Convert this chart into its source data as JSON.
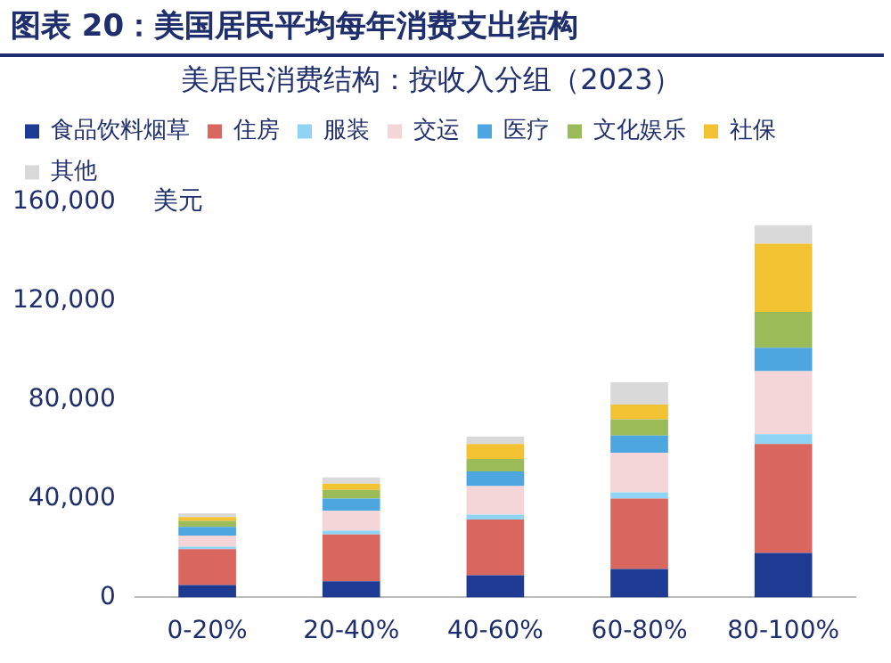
{
  "chart_data": {
    "type": "bar",
    "title": "图表 20：美国居民平均每年消费支出结构",
    "subtitle": "美居民消费结构：按收入分组（2023）",
    "ylabel": "美元",
    "categories": [
      "0-20%",
      "20-40%",
      "40-60%",
      "60-80%",
      "80-100%"
    ],
    "stacked": true,
    "grid": false,
    "legend": "top",
    "ylim": [
      0,
      160000
    ],
    "yticks": [
      {
        "value": 0,
        "label": "0"
      },
      {
        "value": 40000,
        "label": "40,000"
      },
      {
        "value": 80000,
        "label": "80,000"
      },
      {
        "value": 120000,
        "label": "120,000"
      },
      {
        "value": 160000,
        "label": "160,000"
      }
    ],
    "series": [
      {
        "name": "食品饮料烟草",
        "color": "#1f3a93",
        "values": [
          5000,
          6500,
          9000,
          11500,
          18000
        ]
      },
      {
        "name": "住房",
        "color": "#d9675f",
        "values": [
          14500,
          19000,
          22500,
          28500,
          44000
        ]
      },
      {
        "name": "服装",
        "color": "#8fd3f5",
        "values": [
          1000,
          1500,
          2000,
          2500,
          4000
        ]
      },
      {
        "name": "交运",
        "color": "#f4d6d8",
        "values": [
          4500,
          8000,
          11500,
          16000,
          25500
        ]
      },
      {
        "name": "医疗",
        "color": "#4ea6e0",
        "values": [
          3500,
          5000,
          6000,
          7000,
          9500
        ]
      },
      {
        "name": "文化娱乐",
        "color": "#9bbb59",
        "values": [
          2500,
          3500,
          5000,
          6500,
          14500
        ]
      },
      {
        "name": "社保",
        "color": "#f2c233",
        "values": [
          1500,
          2500,
          6000,
          6000,
          27500
        ]
      },
      {
        "name": "其他",
        "color": "#d9d9d9",
        "values": [
          1500,
          2500,
          3000,
          9000,
          7500
        ]
      }
    ]
  }
}
